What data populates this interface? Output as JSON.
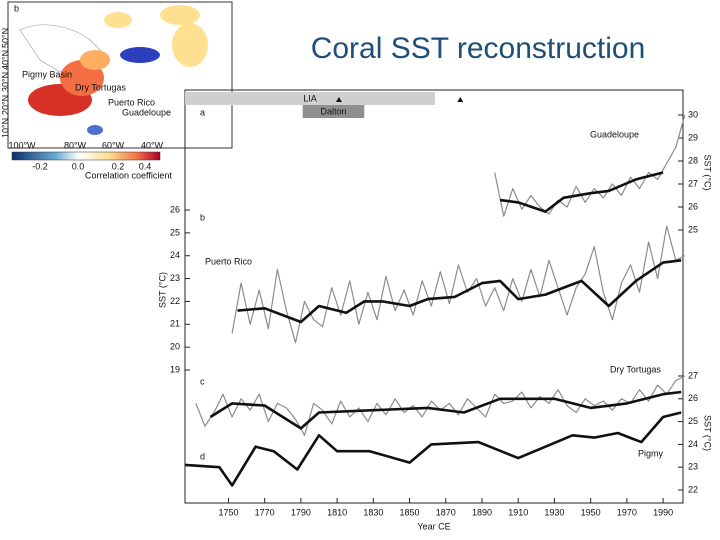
{
  "slide": {
    "title": "Coral SST reconstruction"
  },
  "map": {
    "panel": "b",
    "sites": [
      "Pigmy Basin",
      "Dry Tortugas",
      "Puerto Rico",
      "Guadeloupe"
    ],
    "lon_labels": [
      "100°W",
      "80°W",
      "60°W",
      "40°W"
    ],
    "lat_labels": [
      "10°N",
      "20°N",
      "30°N",
      "40°N",
      "50°N"
    ],
    "colorbar_ticks": [
      "-0.2",
      "0.0",
      "0.2",
      "0.4"
    ],
    "colorbar_label": "Correlation coefficient"
  },
  "chart_data": [
    {
      "type": "line",
      "panel_labels": [
        "a"
      ],
      "annotations": [
        "Guadeloupe"
      ],
      "ylabel": "SST (°C)",
      "periods": [
        {
          "label": "LIA",
          "start": 1726,
          "end": 1864
        },
        {
          "label": "Dalton",
          "start": 1791,
          "end": 1825
        }
      ],
      "markers": [
        1811,
        1878
      ],
      "xlim": [
        1726,
        2001
      ],
      "ylim": [
        24.5,
        30.6
      ],
      "yticks": [
        25,
        26,
        27,
        28,
        29,
        30
      ],
      "yaxis": "right",
      "series": [
        {
          "color": "#8c8c8c",
          "x": [
            1897,
            1902,
            1907,
            1912,
            1917,
            1922,
            1927,
            1932,
            1937,
            1942,
            1947,
            1952,
            1957,
            1962,
            1967,
            1972,
            1977,
            1982,
            1987,
            1992,
            1997,
            2002
          ],
          "values": [
            27.5,
            25.6,
            26.8,
            25.9,
            26.5,
            26.0,
            25.7,
            26.3,
            26.0,
            26.9,
            26.2,
            26.8,
            26.4,
            27.0,
            26.5,
            27.3,
            26.8,
            27.5,
            27.2,
            27.9,
            28.6,
            30.0
          ]
        },
        {
          "color": "#111111",
          "x": [
            1900,
            1910,
            1925,
            1935,
            1950,
            1960,
            1975,
            1990
          ],
          "values": [
            26.3,
            26.2,
            25.8,
            26.4,
            26.6,
            26.7,
            27.2,
            27.5
          ]
        }
      ]
    },
    {
      "type": "line",
      "panel_labels": [
        "b"
      ],
      "annotations": [
        "Puerto Rico"
      ],
      "ylabel": "SST (°C)",
      "xlim": [
        1726,
        2001
      ],
      "ylim": [
        18.5,
        26.5
      ],
      "yticks": [
        19,
        20,
        21,
        22,
        23,
        24,
        25,
        26
      ],
      "yaxis": "left",
      "series": [
        {
          "color": "#8c8c8c",
          "x": [
            1752,
            1757,
            1762,
            1767,
            1772,
            1777,
            1782,
            1787,
            1792,
            1797,
            1802,
            1807,
            1812,
            1817,
            1822,
            1827,
            1832,
            1837,
            1842,
            1847,
            1852,
            1857,
            1862,
            1867,
            1872,
            1877,
            1882,
            1887,
            1892,
            1897,
            1902,
            1907,
            1912,
            1917,
            1922,
            1927,
            1932,
            1937,
            1942,
            1947,
            1952,
            1957,
            1962,
            1967,
            1972,
            1977,
            1982,
            1987,
            1992,
            1997,
            2002
          ],
          "values": [
            20.6,
            22.8,
            21.0,
            22.5,
            20.8,
            23.4,
            21.6,
            20.2,
            22.0,
            21.2,
            20.9,
            22.6,
            21.4,
            22.9,
            21.0,
            22.4,
            21.2,
            23.1,
            21.6,
            22.5,
            21.4,
            22.9,
            21.8,
            23.3,
            21.9,
            23.6,
            22.4,
            23.0,
            21.8,
            22.6,
            21.6,
            23.0,
            22.0,
            23.4,
            22.2,
            23.8,
            22.6,
            21.4,
            22.6,
            23.2,
            24.4,
            22.4,
            21.2,
            22.8,
            23.6,
            22.4,
            24.6,
            23.0,
            25.3,
            23.8,
            24.0
          ]
        },
        {
          "color": "#111111",
          "x": [
            1755,
            1770,
            1790,
            1800,
            1815,
            1825,
            1835,
            1850,
            1860,
            1875,
            1890,
            1900,
            1910,
            1925,
            1945,
            1960,
            1975,
            1990,
            2000
          ],
          "values": [
            21.6,
            21.7,
            21.1,
            21.8,
            21.5,
            22.0,
            22.0,
            21.8,
            22.1,
            22.2,
            22.8,
            22.9,
            22.1,
            22.3,
            22.9,
            21.8,
            22.9,
            23.7,
            23.8
          ]
        }
      ]
    },
    {
      "type": "line",
      "panel_labels": [
        "c",
        "d"
      ],
      "annotations": [
        "Dry Tortugas",
        "Pigmy"
      ],
      "ylabel": "SST (°C)",
      "xlabel": "Year CE",
      "xlim": [
        1726,
        2001
      ],
      "xticks": [
        1750,
        1770,
        1790,
        1810,
        1830,
        1850,
        1870,
        1890,
        1910,
        1930,
        1950,
        1970,
        1990
      ],
      "ylim": [
        21.5,
        27.5
      ],
      "yticks": [
        22,
        23,
        24,
        25,
        26,
        27
      ],
      "yaxis": "right",
      "series": [
        {
          "color": "#8c8c8c",
          "x": [
            1732,
            1737,
            1742,
            1747,
            1752,
            1757,
            1762,
            1767,
            1772,
            1777,
            1782,
            1787,
            1792,
            1797,
            1802,
            1807,
            1812,
            1817,
            1822,
            1827,
            1832,
            1837,
            1842,
            1847,
            1852,
            1857,
            1862,
            1867,
            1872,
            1877,
            1882,
            1887,
            1892,
            1897,
            1902,
            1907,
            1912,
            1917,
            1922,
            1927,
            1932,
            1937,
            1942,
            1947,
            1952,
            1957,
            1962,
            1967,
            1972,
            1977,
            1982,
            1987,
            1992,
            1997,
            2002
          ],
          "values": [
            25.8,
            24.8,
            25.4,
            26.2,
            25.2,
            26.0,
            25.5,
            26.2,
            25.0,
            25.8,
            25.6,
            25.1,
            24.4,
            25.8,
            25.5,
            24.9,
            25.9,
            25.2,
            25.6,
            25.0,
            25.8,
            25.3,
            26.0,
            25.4,
            25.7,
            25.2,
            25.9,
            25.5,
            25.8,
            25.3,
            26.0,
            25.6,
            25.2,
            26.2,
            25.8,
            25.9,
            26.3,
            25.6,
            26.1,
            25.8,
            26.4,
            25.7,
            25.4,
            26.0,
            25.7,
            25.9,
            25.5,
            26.0,
            25.8,
            26.4,
            25.9,
            26.6,
            26.2,
            26.8,
            27.0
          ]
        },
        {
          "color": "#111111",
          "x": [
            1740,
            1752,
            1770,
            1790,
            1800,
            1830,
            1860,
            1880,
            1900,
            1930,
            1950,
            1970,
            1990,
            2000
          ],
          "values": [
            25.2,
            25.8,
            25.7,
            24.7,
            25.4,
            25.5,
            25.6,
            25.4,
            26.0,
            26.0,
            25.6,
            25.8,
            26.2,
            26.3
          ]
        },
        {
          "color": "#111111",
          "x": [
            1726,
            1745,
            1752,
            1765,
            1775,
            1788,
            1800,
            1810,
            1828,
            1850,
            1862,
            1888,
            1910,
            1928,
            1940,
            1952,
            1965,
            1978,
            1990,
            2000
          ],
          "values": [
            23.1,
            23.0,
            22.2,
            23.9,
            23.7,
            22.9,
            24.4,
            23.7,
            23.7,
            23.2,
            24.0,
            24.1,
            23.4,
            24.0,
            24.4,
            24.3,
            24.5,
            24.1,
            25.2,
            25.4
          ]
        }
      ]
    }
  ]
}
